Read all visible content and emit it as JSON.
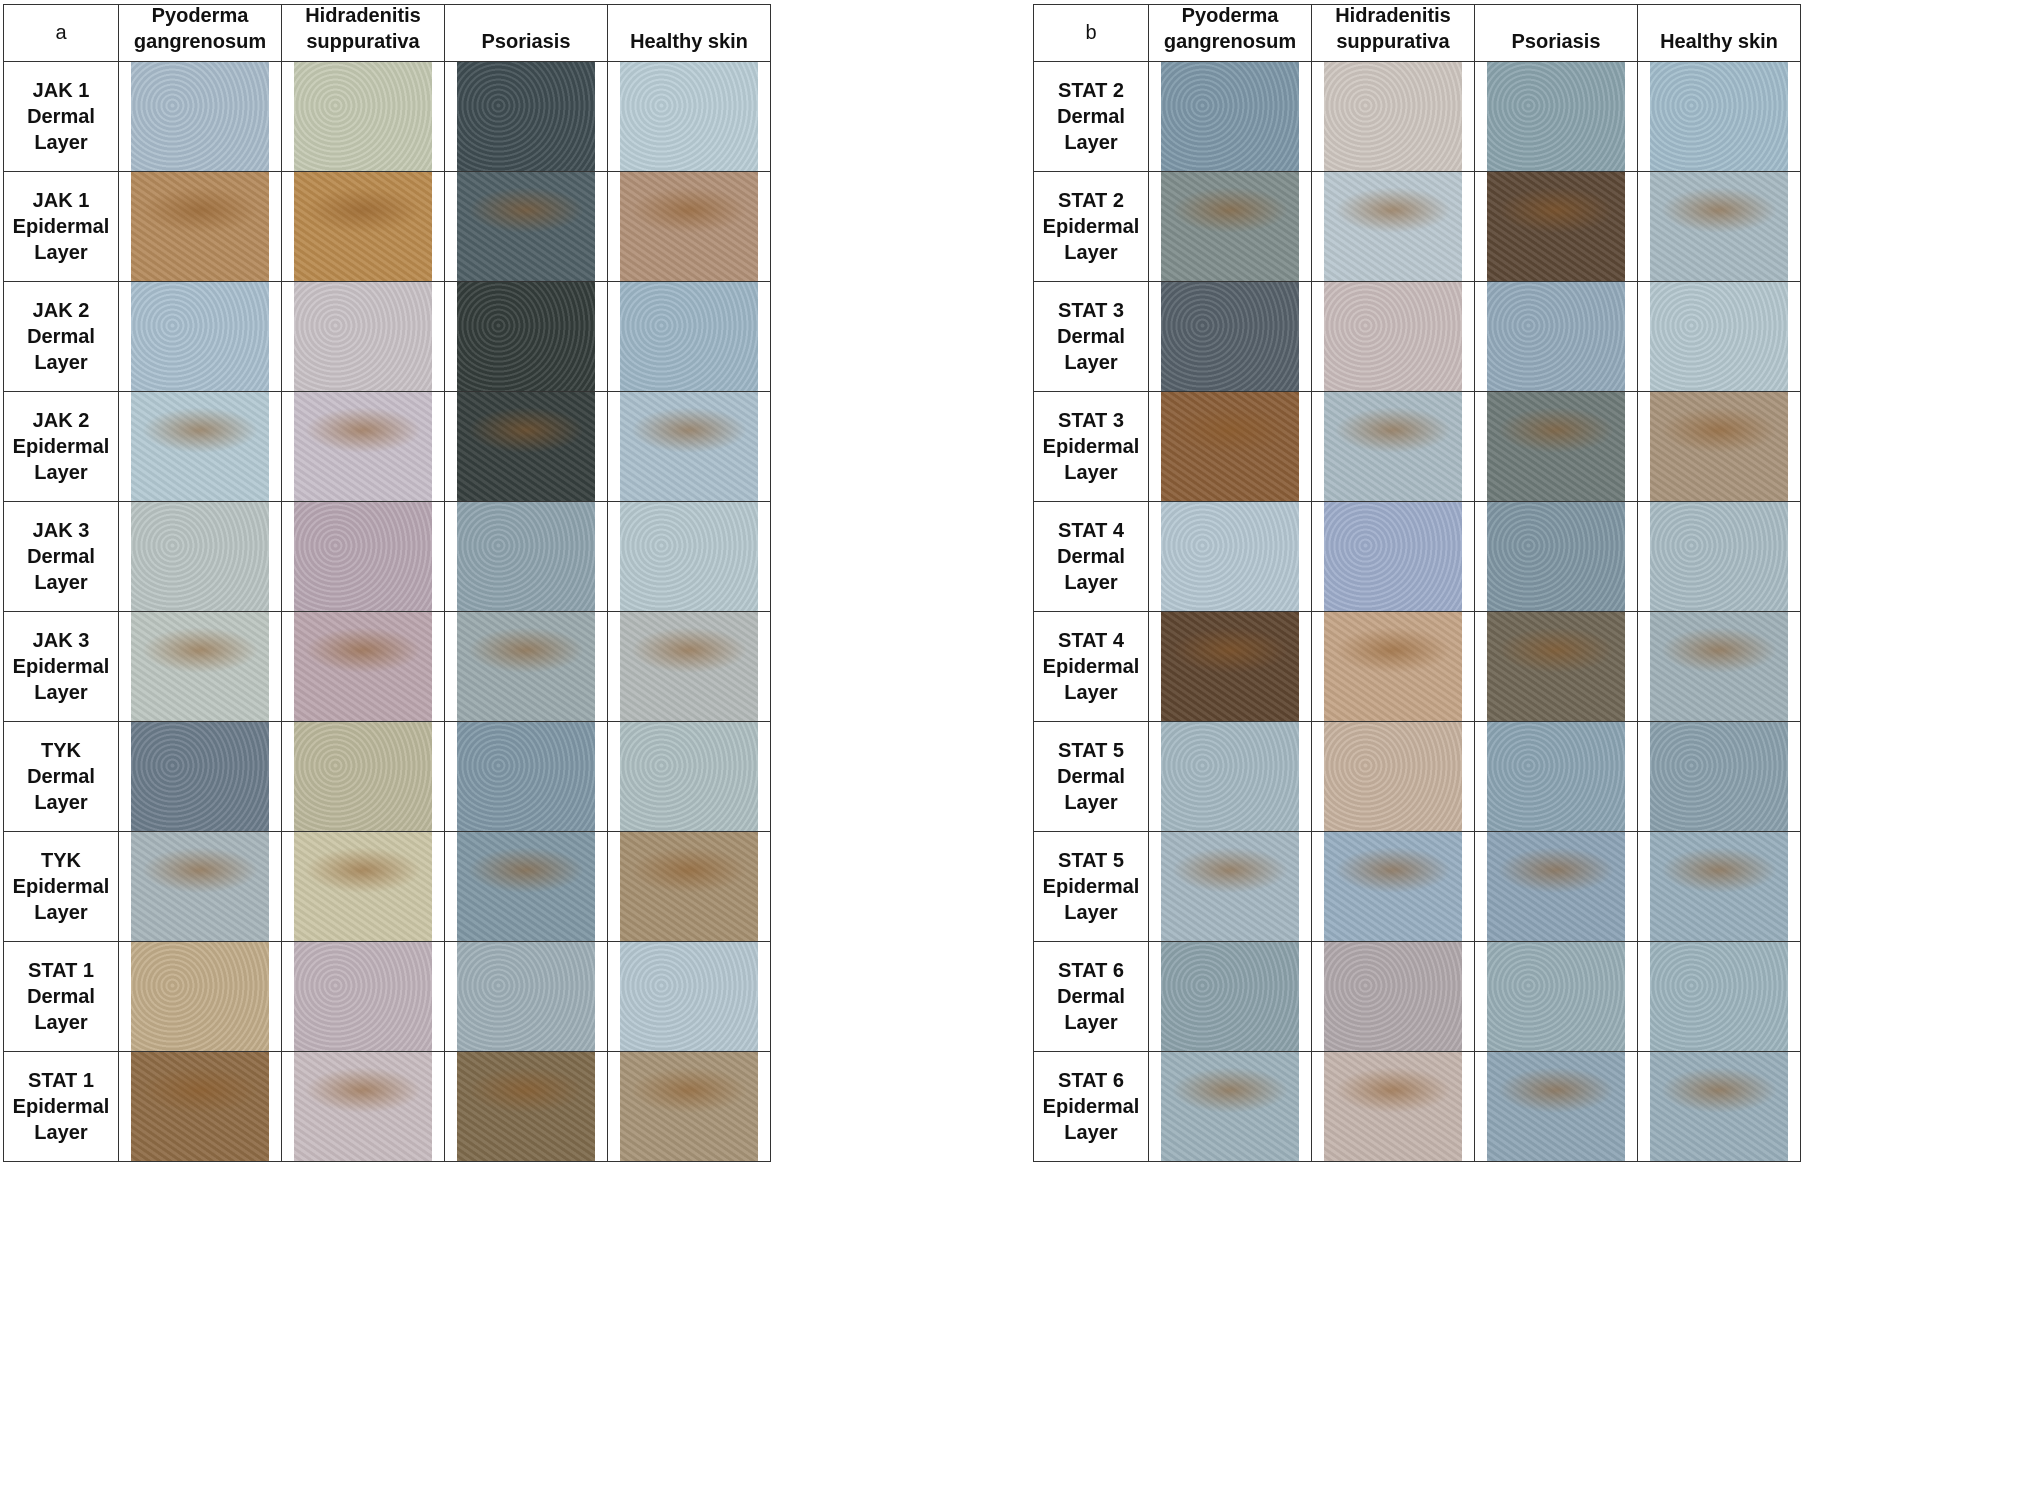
{
  "panels": [
    {
      "letter": "a",
      "columns": [
        "Pyoderma\ngangrenosum",
        "Hidradenitis\nsuppurativa",
        "Psoriasis",
        "Healthy skin"
      ],
      "rows": [
        {
          "label": "JAK 1\nDermal Layer"
        },
        {
          "label": "JAK 1\nEpidermal\nLayer"
        },
        {
          "label": "JAK 2\nDermal Layer"
        },
        {
          "label": "JAK 2\nEpidermal\nLayer"
        },
        {
          "label": "JAK 3\nDermal Layer"
        },
        {
          "label": "JAK 3\nEpidermal\nLayer"
        },
        {
          "label": "TYK\nDermal Layer"
        },
        {
          "label": "TYK\nEpidermal\nLayer"
        },
        {
          "label": "STAT 1\nDermal Layer"
        },
        {
          "label": "STAT 1\nEpidermal\nLayer"
        }
      ]
    },
    {
      "letter": "b",
      "columns": [
        "Pyoderma\ngangrenosum",
        "Hidradenitis\nsuppurativa",
        "Psoriasis",
        "Healthy skin"
      ],
      "rows": [
        {
          "label": "STAT 2\nDermal Layer"
        },
        {
          "label": "STAT 2\nEpidermal\nLayer"
        },
        {
          "label": "STAT 3\nDermal Layer"
        },
        {
          "label": "STAT 3\nEpidermal\nLayer"
        },
        {
          "label": "STAT 4\nDermal Layer"
        },
        {
          "label": "STAT 4\nEpidermal\nLayer"
        },
        {
          "label": "STAT 5\nDermal Layer"
        },
        {
          "label": "STAT 5\nEpidermal\nLayer"
        },
        {
          "label": "STAT 6\nDermal Layer"
        },
        {
          "label": "STAT 6\nEpidermal\nLayer"
        }
      ]
    }
  ],
  "stain_colors": {
    "pg_dermal": "#9fb2c4",
    "hs_dermal": "#c7cdb8",
    "ps_dermal": "#46555a",
    "hs_tan": "#c9b48a",
    "healthy": "#b7cbd5",
    "brown": "#8a5a2a",
    "blue_grey": "#8fa6b4",
    "dark_grey": "#37413f"
  },
  "cell_tints": {
    "a": [
      [
        "#a9bccb",
        "#c4c9b2",
        "#3f4d52",
        "#b9cdd6"
      ],
      [
        "#b48a5c",
        "#b98a4e",
        "#4f6066",
        "#b19077"
      ],
      [
        "#a9bfcf",
        "#c9c2c6",
        "#343d3b",
        "#9db6c6"
      ],
      [
        "#b3c9d3",
        "#c7bec9",
        "#363f3e",
        "#aabfcc"
      ],
      [
        "#b9c4c3",
        "#b8a7b3",
        "#8ea3ae",
        "#b6c8cf"
      ],
      [
        "#bcc5c0",
        "#bba5ae",
        "#9aa9ad",
        "#b3b9b8"
      ],
      [
        "#6c7c8b",
        "#bcb89c",
        "#7f97a6",
        "#aebfc2"
      ],
      [
        "#a6b4ba",
        "#cbc6a6",
        "#7f97a4",
        "#a58f70"
      ],
      [
        "#c2ad8a",
        "#c0b2ba",
        "#9eafb7",
        "#b5c7d1"
      ],
      [
        "#8e6b45",
        "#c8bcc0",
        "#7e6a4c",
        "#a79477"
      ]
    ],
    "b": [
      [
        "#7d97a8",
        "#cec6c0",
        "#8aa3ad",
        "#a1bccb"
      ],
      [
        "#7f8d8c",
        "#b9c7cf",
        "#5c4836",
        "#a6b8c1"
      ],
      [
        "#56616a",
        "#c9bcbb",
        "#93aabb",
        "#b4c7cf"
      ],
      [
        "#8a5e38",
        "#a9bac3",
        "#6e7a78",
        "#a8937b"
      ],
      [
        "#b5c7d2",
        "#9eadcb",
        "#7f96a3",
        "#a9bcc4"
      ],
      [
        "#5e4530",
        "#c4a487",
        "#6f6655",
        "#9fb0b7"
      ],
      [
        "#a4b8c2",
        "#c7b29f",
        "#8ba4b3",
        "#8aa0ad"
      ],
      [
        "#a4b6c1",
        "#97aec1",
        "#8ca3b6",
        "#97aebc"
      ],
      [
        "#8ca2ab",
        "#b1a8ac",
        "#98aeb6",
        "#9db4be"
      ],
      [
        "#9cb1bb",
        "#c4b4ad",
        "#8ea5b5",
        "#98aeba"
      ]
    ]
  }
}
